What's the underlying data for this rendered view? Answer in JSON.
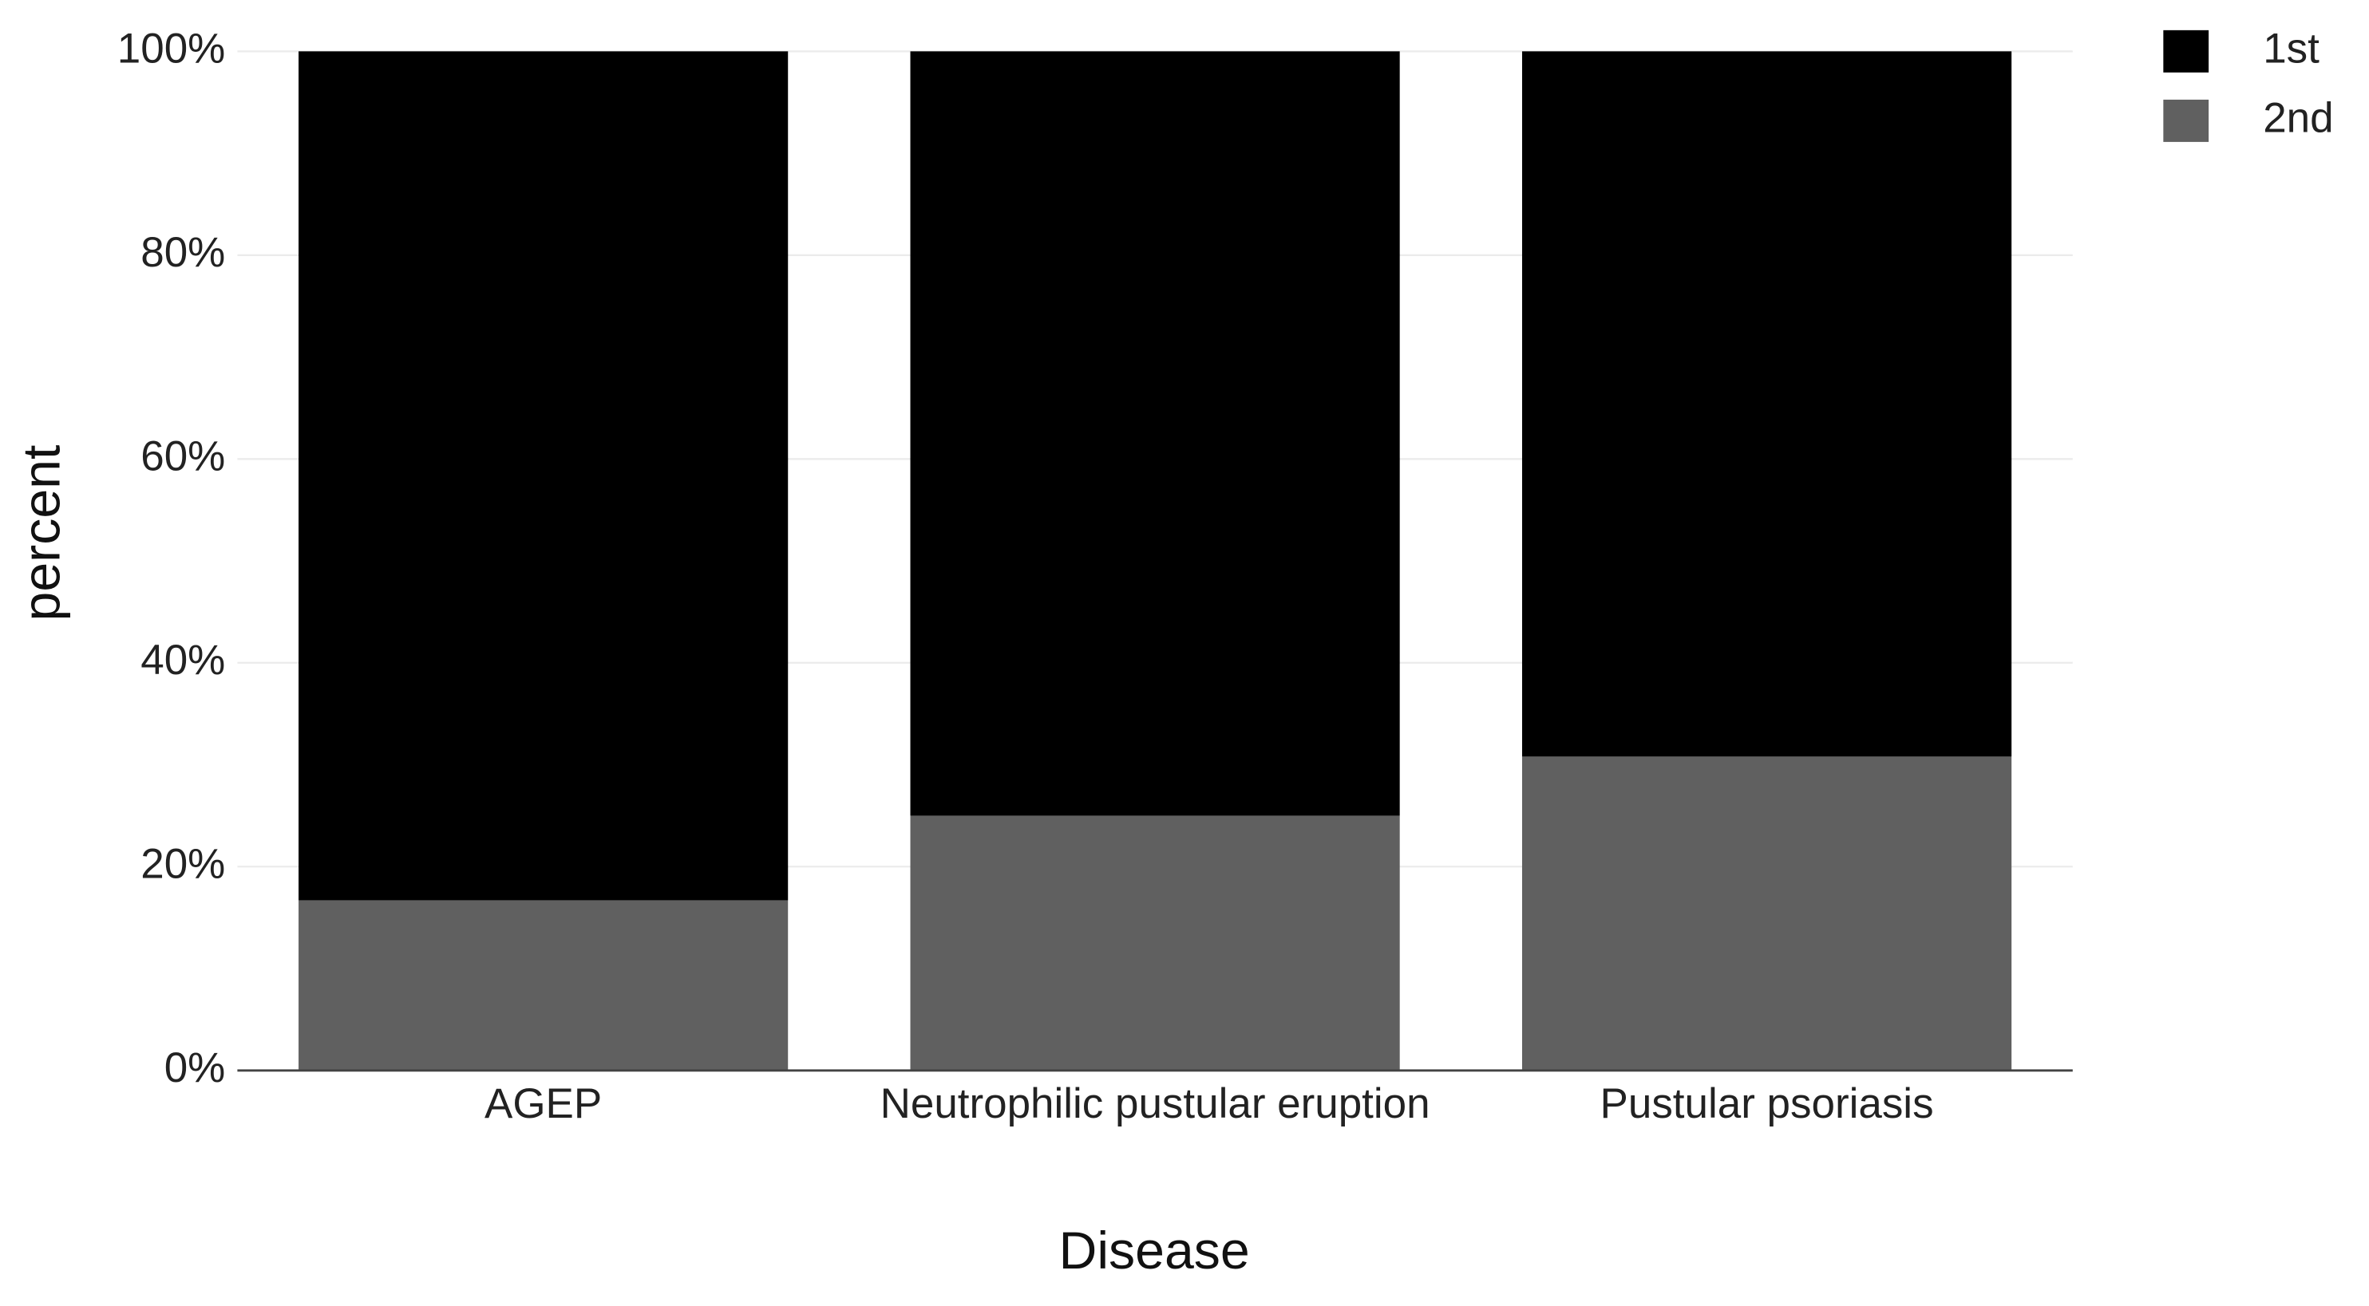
{
  "chart_data": {
    "type": "stacked_bar",
    "x_label": "Disease",
    "y_label": "percent",
    "categories": [
      "AGEP",
      "Neutrophilic pustular eruption",
      "Pustular psoriasis"
    ],
    "series": [
      {
        "name": "1st",
        "color": "#000000",
        "values": [
          83.3,
          75,
          69.2
        ]
      },
      {
        "name": "2nd",
        "color": "#606060",
        "values": [
          16.7,
          25,
          30.8
        ]
      }
    ],
    "ylim": [
      0,
      100
    ],
    "yticks": [
      {
        "value": 0,
        "label": "0%"
      },
      {
        "value": 20,
        "label": "20%"
      },
      {
        "value": 40,
        "label": "40%"
      },
      {
        "value": 60,
        "label": "60%"
      },
      {
        "value": 80,
        "label": "80%"
      },
      {
        "value": 100,
        "label": "100%"
      }
    ],
    "grid": true,
    "legend": "right"
  }
}
